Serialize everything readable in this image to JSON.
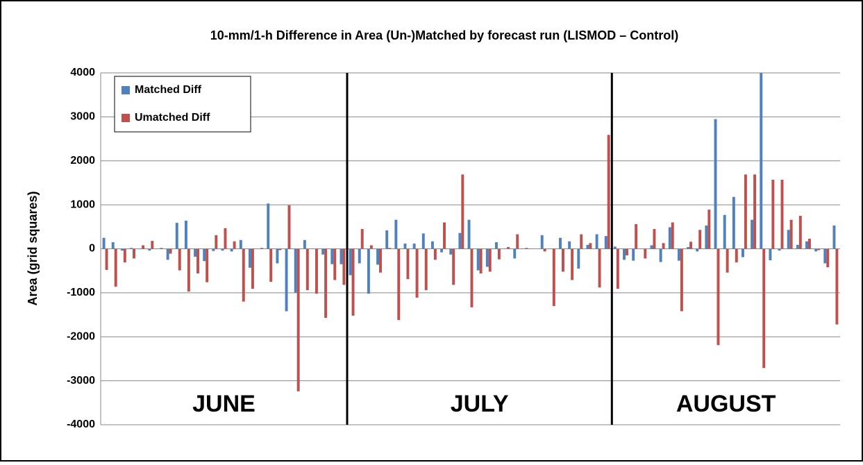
{
  "chart_data": {
    "type": "bar",
    "title": "10-mm/1-h Difference in Area (Un-)Matched by forecast run (LISMOD – Control)",
    "y_label": "Area (grid squares)",
    "annotations": [
      "JUNE",
      "JULY",
      "AUGUST"
    ],
    "categories": [
      null,
      null,
      null,
      null,
      null,
      null,
      null,
      null,
      null,
      null,
      null,
      null,
      null,
      null,
      null,
      null,
      null,
      null,
      null,
      null,
      null,
      null,
      null,
      null,
      null,
      null,
      null,
      null,
      null,
      null,
      null,
      null,
      null,
      null,
      null,
      null,
      null,
      null,
      null,
      null,
      null,
      null,
      null,
      null,
      null,
      null,
      null,
      null,
      null,
      null,
      null,
      null,
      null,
      null,
      null,
      null,
      null,
      null,
      null,
      null,
      null,
      null,
      null,
      null,
      null,
      null,
      null,
      null,
      null,
      null,
      null,
      null,
      null,
      null,
      null,
      null,
      null,
      null,
      null,
      null,
      null
    ],
    "series": [
      {
        "name": "Matched Diff",
        "color": "#4f81bd",
        "values": [
          250,
          150,
          -40,
          20,
          -10,
          -40,
          0,
          -250,
          590,
          640,
          -180,
          -280,
          -50,
          -40,
          -60,
          200,
          -430,
          0,
          1030,
          -330,
          -1420,
          -1000,
          200,
          0,
          -130,
          -350,
          -350,
          -600,
          -330,
          -1020,
          -360,
          420,
          660,
          120,
          120,
          350,
          170,
          -80,
          -130,
          360,
          660,
          -490,
          -410,
          150,
          0,
          -220,
          0,
          0,
          310,
          0,
          250,
          170,
          -450,
          90,
          330,
          290,
          50,
          -250,
          -270,
          0,
          80,
          -300,
          490,
          -270,
          40,
          -60,
          530,
          2950,
          770,
          1180,
          -190,
          660,
          4000,
          -260,
          -40,
          430,
          90,
          170,
          -60,
          -330,
          530
        ]
      },
      {
        "name": "Umatched Diff",
        "color": "#c0504d",
        "values": [
          -480,
          -860,
          -310,
          -220,
          80,
          180,
          20,
          -110,
          -490,
          -970,
          -560,
          -760,
          310,
          470,
          170,
          -1200,
          -910,
          20,
          -750,
          -30,
          990,
          -3240,
          -940,
          -1020,
          -1570,
          -710,
          -820,
          -1520,
          450,
          80,
          -540,
          20,
          -1620,
          -690,
          -1110,
          -940,
          -250,
          600,
          -820,
          1690,
          -1330,
          -560,
          -520,
          -240,
          40,
          330,
          20,
          0,
          -60,
          -1300,
          -520,
          -710,
          330,
          130,
          -880,
          2590,
          -910,
          -150,
          560,
          -220,
          450,
          130,
          600,
          -1420,
          160,
          430,
          890,
          -2190,
          -540,
          -310,
          1690,
          1690,
          -2710,
          1570,
          1570,
          660,
          750,
          230,
          -30,
          -420,
          -1720
        ]
      }
    ],
    "ylim": [
      -4000,
      4000
    ],
    "yticks": [
      -4000,
      -3000,
      -2000,
      -1000,
      0,
      1000,
      2000,
      3000,
      4000
    ],
    "grid": true,
    "legend": "top-left"
  }
}
